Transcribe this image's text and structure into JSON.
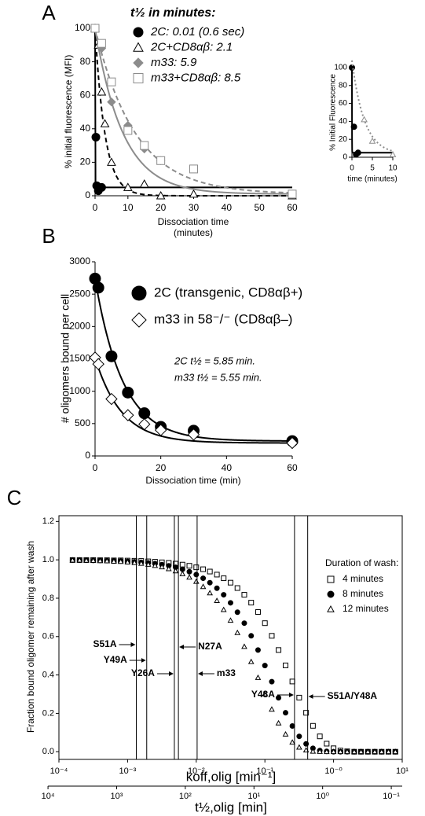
{
  "chart_data": [
    {
      "panel": "A",
      "type": "line",
      "legend_title": "t½ in minutes:",
      "xlabel": [
        "Dissociation time",
        "(minutes)"
      ],
      "ylabel": "% initial fluorescence (MFI)",
      "xlim": [
        0,
        60
      ],
      "ylim": [
        0,
        100
      ],
      "xticks": [
        0,
        10,
        20,
        30,
        40,
        50,
        60
      ],
      "yticks": [
        0,
        20,
        40,
        60,
        80,
        100
      ],
      "series": [
        {
          "name": "2C: 0.01 (0.6 sec)",
          "color": "#000000",
          "marker": "circle",
          "filled": true,
          "line": "solid",
          "half_life": 0.01,
          "x": [
            0,
            0.25,
            0.5,
            1,
            2
          ],
          "values": [
            100,
            35,
            6,
            3,
            5
          ]
        },
        {
          "name": "2C+CD8αβ: 2.1",
          "color": "#000000",
          "marker": "triangle",
          "filled": false,
          "line": "dashed",
          "half_life": 2.1,
          "x": [
            0,
            1,
            2,
            3,
            5,
            10,
            15,
            20,
            30,
            60
          ],
          "values": [
            100,
            90,
            62,
            43,
            20,
            5,
            7,
            0,
            1,
            0
          ]
        },
        {
          "name": "m33: 5.9",
          "color": "#8c8c8c",
          "marker": "diamond",
          "filled": true,
          "line": "solid",
          "half_life": 5.9,
          "x": [
            0,
            2,
            5,
            10,
            15,
            20,
            60
          ],
          "values": [
            100,
            88,
            56,
            42,
            28,
            21,
            1
          ]
        },
        {
          "name": "m33+CD8αβ: 8.5",
          "color": "#8c8c8c",
          "marker": "square",
          "filled": false,
          "line": "dashed",
          "half_life": 8.5,
          "x": [
            0,
            2,
            5,
            10,
            15,
            20,
            30,
            60
          ],
          "values": [
            100,
            91,
            68,
            39,
            30,
            21,
            16,
            1
          ]
        }
      ]
    },
    {
      "type": "line",
      "xlabel": "time (minutes)",
      "ylabel": "% Initial Fluorescence",
      "xlim": [
        0,
        10
      ],
      "ylim": [
        0,
        100
      ],
      "xticks": [
        0,
        5,
        10
      ],
      "yticks": [
        0,
        20,
        40,
        60,
        80,
        100
      ],
      "series": [
        {
          "color": "#000000",
          "marker": "circle",
          "filled": true,
          "line": "solid",
          "half_life": 0.01,
          "x": [
            0,
            0.5,
            1,
            1.5
          ],
          "values": [
            100,
            34,
            3,
            5
          ]
        },
        {
          "color": "#8c8c8c",
          "marker": "triangle",
          "filled": false,
          "line": "dotted",
          "half_life": 2.1,
          "x": [
            3,
            5,
            10
          ],
          "values": [
            42,
            18,
            3
          ]
        }
      ]
    },
    {
      "panel": "B",
      "type": "line",
      "xlabel": "Dissociation time (min)",
      "ylabel": "# oligomers bound per cell",
      "xlim": [
        0,
        60
      ],
      "ylim": [
        0,
        3000
      ],
      "xticks": [
        0,
        20,
        40,
        60
      ],
      "yticks": [
        0,
        500,
        1000,
        1500,
        2000,
        2500,
        3000
      ],
      "annotations": [
        "2C t½ = 5.85 min.",
        "m33 t½ = 5.55 min."
      ],
      "series": [
        {
          "name": "2C (transgenic, CD8αβ+)",
          "color": "#000000",
          "marker": "circle",
          "filled": true,
          "line": "solid",
          "half_life": 5.85,
          "x": [
            0,
            1,
            5,
            10,
            15,
            20,
            30,
            60
          ],
          "values": [
            2740,
            2600,
            1540,
            980,
            660,
            450,
            390,
            230
          ]
        },
        {
          "name": "m33 in 58⁻/⁻ (CD8αβ–)",
          "color": "#000000",
          "marker": "diamond",
          "filled": false,
          "line": "solid",
          "half_life": 5.55,
          "x": [
            0,
            1,
            5,
            10,
            15,
            20,
            30,
            60
          ],
          "values": [
            1520,
            1420,
            880,
            630,
            490,
            400,
            330,
            200
          ]
        }
      ]
    },
    {
      "panel": "C",
      "type": "scatter",
      "xlog": true,
      "xlabel": "koff,olig [min⁻¹]",
      "x2label": "t½,olig [min]",
      "ylabel": "Fraction bound oligomer remaining after wash",
      "legend_title": "Duration of wash:",
      "xlim": [
        0.0001,
        10
      ],
      "ylim": [
        -0.04,
        1.23
      ],
      "xticks": [
        {
          "value": 0.0001,
          "label": "10⁻⁴"
        },
        {
          "value": 0.001,
          "label": "10⁻³"
        },
        {
          "value": 0.01,
          "label": "10⁻²"
        },
        {
          "value": 0.1,
          "label": "10⁻¹"
        },
        {
          "value": 1,
          "label": "10⁻⁰"
        },
        {
          "value": 10,
          "label": "10¹"
        }
      ],
      "x2lim": [
        6931.47,
        0.0693
      ],
      "x2ticks": [
        {
          "value": 10000,
          "label": "10⁴"
        },
        {
          "value": 1000,
          "label": "10³"
        },
        {
          "value": 100,
          "label": "10²"
        },
        {
          "value": 10,
          "label": "10¹"
        },
        {
          "value": 1,
          "label": "10⁰"
        },
        {
          "value": 0.1,
          "label": "10⁻¹"
        }
      ],
      "yticks": [
        {
          "value": 0,
          "label": "0.0"
        },
        0.2,
        0.4,
        0.6,
        0.8,
        {
          "value": 1,
          "label": "1.0"
        },
        1.2
      ],
      "x": [
        0.000158,
        0.0002,
        0.000251,
        0.000316,
        0.000398,
        0.000501,
        0.000631,
        0.000794,
        0.001,
        0.00126,
        0.00158,
        0.002,
        0.00251,
        0.00316,
        0.00398,
        0.00501,
        0.00631,
        0.00794,
        0.01,
        0.0126,
        0.0158,
        0.02,
        0.0251,
        0.0316,
        0.0398,
        0.0501,
        0.0631,
        0.0794,
        0.1,
        0.126,
        0.158,
        0.2,
        0.251,
        0.316,
        0.398,
        0.501,
        0.631,
        0.794,
        1,
        1.26,
        1.58,
        2,
        2.51,
        3.16,
        3.98,
        5.01,
        6.31,
        7.94
      ],
      "series": [
        {
          "name": "4 minutes",
          "color": "#000000",
          "marker": "square",
          "filled": false,
          "values": [
            0.999,
            0.999,
            0.999,
            0.999,
            0.998,
            0.998,
            0.997,
            0.997,
            0.996,
            0.995,
            0.994,
            0.992,
            0.99,
            0.987,
            0.984,
            0.98,
            0.975,
            0.969,
            0.961,
            0.951,
            0.939,
            0.923,
            0.904,
            0.881,
            0.853,
            0.818,
            0.777,
            0.728,
            0.67,
            0.604,
            0.53,
            0.45,
            0.366,
            0.282,
            0.203,
            0.135,
            0.08,
            0.042,
            0.018,
            0.006,
            0.002,
            0,
            0,
            0,
            0,
            0,
            0,
            0
          ]
        },
        {
          "name": "8 minutes",
          "color": "#000000",
          "marker": "circle",
          "filled": true,
          "values": [
            0.999,
            0.998,
            0.998,
            0.997,
            0.997,
            0.996,
            0.995,
            0.994,
            0.992,
            0.99,
            0.987,
            0.984,
            0.98,
            0.975,
            0.969,
            0.961,
            0.951,
            0.938,
            0.923,
            0.904,
            0.881,
            0.852,
            0.818,
            0.776,
            0.727,
            0.67,
            0.604,
            0.53,
            0.449,
            0.365,
            0.281,
            0.203,
            0.134,
            0.08,
            0.041,
            0.018,
            0.006,
            0.002,
            0,
            0,
            0,
            0,
            0,
            0,
            0,
            0,
            0,
            0
          ]
        },
        {
          "name": "12 minutes",
          "color": "#000000",
          "marker": "triangle",
          "filled": false,
          "values": [
            0.998,
            0.998,
            0.997,
            0.996,
            0.995,
            0.994,
            0.992,
            0.991,
            0.988,
            0.985,
            0.981,
            0.976,
            0.97,
            0.963,
            0.953,
            0.942,
            0.927,
            0.909,
            0.887,
            0.86,
            0.827,
            0.787,
            0.74,
            0.684,
            0.62,
            0.548,
            0.469,
            0.386,
            0.301,
            0.221,
            0.149,
            0.091,
            0.049,
            0.023,
            0.008,
            0.002,
            0.001,
            0,
            0,
            0,
            0,
            0,
            0,
            0,
            0,
            0,
            0,
            0
          ]
        }
      ],
      "annotations": [
        {
          "text": "S51A",
          "x": 0.00134
        },
        {
          "text": "Y49A",
          "x": 0.0019
        },
        {
          "text": "Y26A",
          "x": 0.0048
        },
        {
          "text": "N27A",
          "x": 0.0055
        },
        {
          "text": "m33",
          "x": 0.0103
        },
        {
          "text": "Y48A",
          "x": 0.27
        },
        {
          "text": "S51A/Y48A",
          "x": 0.42
        }
      ]
    }
  ]
}
